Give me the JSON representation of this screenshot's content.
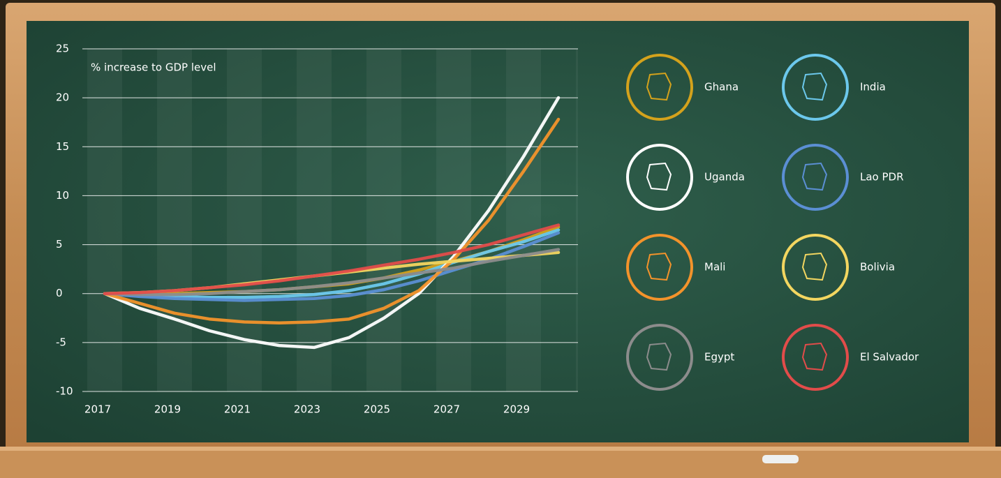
{
  "chart_data": {
    "type": "line",
    "title": "% increase to GDP level",
    "x": [
      2017,
      2018,
      2019,
      2020,
      2021,
      2022,
      2023,
      2024,
      2025,
      2026,
      2027,
      2028,
      2029,
      2030
    ],
    "xlim": [
      2016.36,
      2030.56
    ],
    "xticks": [
      2017,
      2019,
      2021,
      2023,
      2025,
      2027,
      2029
    ],
    "ylim": [
      -10,
      25
    ],
    "yticks": [
      -10,
      -5,
      0,
      5,
      10,
      15,
      20,
      25
    ],
    "grid": true,
    "series": [
      {
        "name": "Ghana",
        "color": "#d4a21c",
        "values": [
          0,
          0,
          0,
          0.1,
          0.2,
          0.4,
          0.7,
          1,
          1.6,
          2.4,
          3.3,
          4.3,
          5.5,
          6.8
        ]
      },
      {
        "name": "India",
        "color": "#6cc8ec",
        "values": [
          0,
          -0.2,
          -0.3,
          -0.4,
          -0.4,
          -0.3,
          -0.1,
          0.3,
          1,
          2,
          3.2,
          4.3,
          5.3,
          6.5
        ]
      },
      {
        "name": "Uganda",
        "color": "#ffffff",
        "values": [
          0,
          -1.5,
          -2.6,
          -3.8,
          -4.7,
          -5.3,
          -5.5,
          -4.5,
          -2.5,
          0,
          3.8,
          8.5,
          14,
          20
        ]
      },
      {
        "name": "Lao PDR",
        "color": "#5b8fd4",
        "values": [
          0,
          -0.3,
          -0.5,
          -0.6,
          -0.7,
          -0.6,
          -0.5,
          -0.2,
          0.4,
          1.3,
          2.4,
          3.5,
          4.8,
          6.2
        ]
      },
      {
        "name": "Mali",
        "color": "#f3932b",
        "values": [
          0,
          -1,
          -2,
          -2.6,
          -2.9,
          -3,
          -2.9,
          -2.6,
          -1.5,
          0.3,
          3.5,
          7.5,
          12.5,
          17.8
        ]
      },
      {
        "name": "Bolivia",
        "color": "#f3d660",
        "values": [
          0,
          0.1,
          0.3,
          0.6,
          1,
          1.4,
          1.8,
          2.2,
          2.6,
          3,
          3.3,
          3.6,
          3.9,
          4.2
        ]
      },
      {
        "name": "Egypt",
        "color": "#8c8c8c",
        "values": [
          0,
          -0.1,
          -0.1,
          0,
          0.2,
          0.4,
          0.7,
          1.1,
          1.6,
          2.1,
          2.6,
          3.3,
          3.9,
          4.5
        ]
      },
      {
        "name": "El Salvador",
        "color": "#e24c4a",
        "values": [
          0,
          0.1,
          0.3,
          0.6,
          0.9,
          1.3,
          1.8,
          2.3,
          2.9,
          3.5,
          4.2,
          5,
          6,
          7
        ]
      }
    ]
  }
}
